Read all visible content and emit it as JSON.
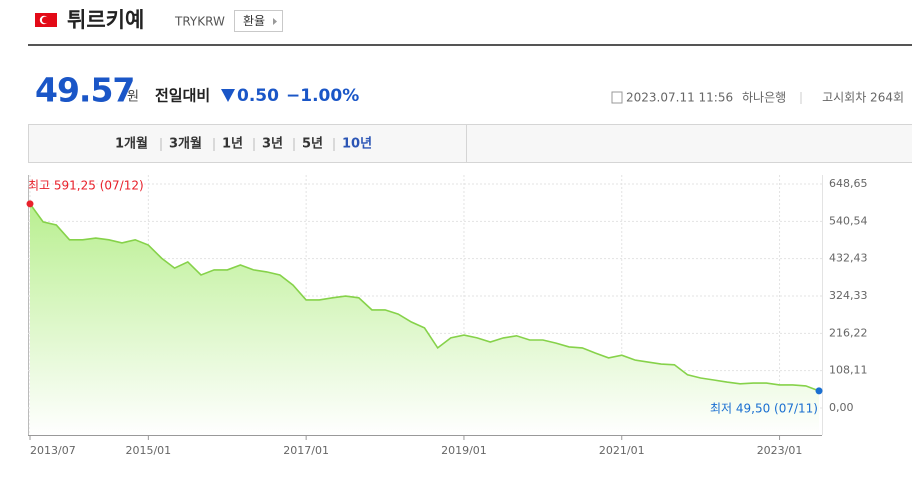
{
  "header": {
    "title": "튀르키예",
    "code": "TRYKRW",
    "button": "환율"
  },
  "quote": {
    "price": "49.57",
    "unit": "원",
    "change_label": "전일대비",
    "change": "0.50",
    "change_pct": "−1.00%",
    "datetime": "2023.07.11 11:56",
    "bank": "하나은행",
    "round": "고시회차 264회"
  },
  "tabs": [
    "1개월",
    "3개월",
    "1년",
    "3년",
    "5년",
    "10년"
  ],
  "active_tab": 5,
  "chart_data": {
    "type": "area",
    "annotations": {
      "max": "최고 591,25 (07/12)",
      "min": "최저 49,50 (07/11)"
    },
    "x": [
      "2013/07",
      "2013/09",
      "2013/11",
      "2014/01",
      "2014/03",
      "2014/05",
      "2014/07",
      "2014/09",
      "2014/11",
      "2015/01",
      "2015/03",
      "2015/05",
      "2015/07",
      "2015/09",
      "2015/11",
      "2016/01",
      "2016/03",
      "2016/05",
      "2016/07",
      "2016/09",
      "2016/11",
      "2017/01",
      "2017/03",
      "2017/05",
      "2017/07",
      "2017/09",
      "2017/11",
      "2018/01",
      "2018/03",
      "2018/05",
      "2018/07",
      "2018/09",
      "2018/11",
      "2019/01",
      "2019/03",
      "2019/05",
      "2019/07",
      "2019/09",
      "2019/11",
      "2020/01",
      "2020/03",
      "2020/05",
      "2020/07",
      "2020/09",
      "2020/11",
      "2021/01",
      "2021/03",
      "2021/05",
      "2021/07",
      "2021/09",
      "2021/11",
      "2022/01",
      "2022/03",
      "2022/05",
      "2022/07",
      "2022/09",
      "2022/11",
      "2023/01",
      "2023/03",
      "2023/05",
      "2023/07"
    ],
    "series": [
      {
        "name": "TRYKRW",
        "color": "#86d24a",
        "values": [
          591.25,
          539,
          530,
          487,
          487,
          492,
          487,
          478,
          487,
          472,
          434,
          405,
          423,
          385,
          400,
          400,
          414,
          400,
          394,
          385,
          356,
          313,
          313,
          319,
          324,
          319,
          284,
          284,
          272,
          249,
          232,
          174,
          203,
          211,
          203,
          191,
          203,
          209,
          197,
          197,
          188,
          177,
          174,
          159,
          145,
          153,
          139,
          133,
          127,
          125,
          96,
          87,
          81,
          75,
          70,
          72,
          72,
          67,
          67,
          64,
          49.5
        ]
      }
    ],
    "xlim": [
      "2013/07",
      "2023/07"
    ],
    "xticks": [
      "2013/07",
      "2015/01",
      "2017/01",
      "2019/01",
      "2021/01",
      "2023/01"
    ],
    "ylim": [
      0,
      648.65
    ],
    "yticks": [
      {
        "value": 0,
        "label": "0,00"
      },
      {
        "value": 108.11,
        "label": "108,11"
      },
      {
        "value": 216.22,
        "label": "216,22"
      },
      {
        "value": 324.33,
        "label": "324,33"
      },
      {
        "value": 432.43,
        "label": "432,43"
      },
      {
        "value": 540.54,
        "label": "540,54"
      },
      {
        "value": 648.65,
        "label": "648,65"
      }
    ],
    "grid": true,
    "max_color": "#e8212b",
    "min_color": "#1a6fd1"
  }
}
